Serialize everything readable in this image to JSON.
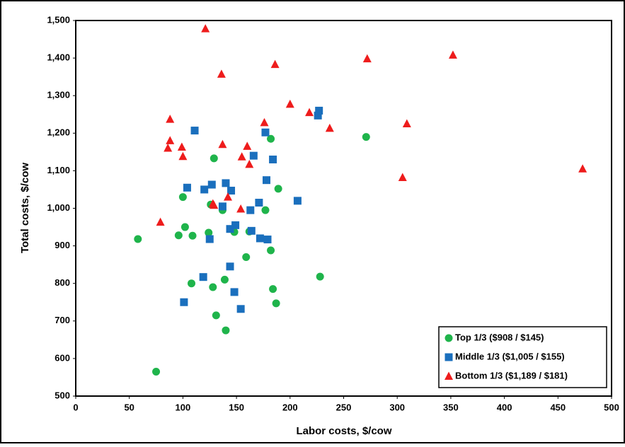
{
  "chart_data": {
    "type": "scatter",
    "x_label": "Labor costs, $/cow",
    "y_label": "Total costs, $/cow",
    "xlim": [
      0,
      500
    ],
    "xticks": [
      0,
      50,
      100,
      150,
      200,
      250,
      300,
      350,
      400,
      450,
      500
    ],
    "ylim": [
      500,
      1500
    ],
    "yticks": [
      500,
      600,
      700,
      800,
      900,
      {
        "value": 1000,
        "label": "1,000"
      },
      {
        "value": 1100,
        "label": "1,100"
      },
      {
        "value": 1200,
        "label": "1,200"
      },
      {
        "value": 1300,
        "label": "1,300"
      },
      {
        "value": 1400,
        "label": "1,400"
      },
      {
        "value": 1500,
        "label": "1,500"
      }
    ],
    "grid": false,
    "legend": "lower right",
    "series": [
      {
        "name": "Top 1/3 ($908 / $145)",
        "color": "#1fb44b",
        "marker": "circle",
        "x": [
          58,
          75,
          96,
          100,
          102,
          108,
          109,
          124,
          126,
          128,
          129,
          131,
          137,
          139,
          140,
          148,
          159,
          162,
          177,
          182,
          182,
          184,
          187,
          189,
          228,
          271
        ],
        "values": [
          918,
          565,
          928,
          1030,
          950,
          800,
          927,
          935,
          1010,
          790,
          1133,
          715,
          995,
          810,
          675,
          937,
          870,
          938,
          995,
          1185,
          888,
          785,
          747,
          1052,
          818,
          1190
        ]
      },
      {
        "name": "Middle 1/3 ($1,005 / $155)",
        "color": "#1a6fbd",
        "marker": "square",
        "x": [
          101,
          104,
          111,
          119,
          120,
          125,
          127,
          137,
          140,
          144,
          144,
          145,
          148,
          149,
          154,
          163,
          164,
          166,
          171,
          172,
          177,
          178,
          179,
          184,
          207,
          226,
          227
        ],
        "values": [
          750,
          1055,
          1207,
          817,
          1050,
          918,
          1063,
          1005,
          1067,
          945,
          845,
          1047,
          777,
          955,
          732,
          995,
          940,
          1140,
          1015,
          920,
          1202,
          1075,
          917,
          1130,
          1020,
          1247,
          1260
        ]
      },
      {
        "name": "Bottom 1/3 ($1,189 / $181)",
        "color": "#ee1c1c",
        "marker": "triangle",
        "x": [
          79,
          86,
          88,
          88,
          99,
          100,
          121,
          128,
          129,
          136,
          137,
          142,
          154,
          155,
          160,
          162,
          176,
          186,
          200,
          218,
          237,
          272,
          305,
          309,
          352,
          473
        ],
        "values": [
          963,
          1160,
          1180,
          1237,
          1163,
          1138,
          1478,
          1012,
          1008,
          1357,
          1170,
          1030,
          998,
          1137,
          1165,
          1117,
          1228,
          1383,
          1277,
          1255,
          1213,
          1398,
          1082,
          1225,
          1408,
          1105
        ]
      }
    ]
  }
}
